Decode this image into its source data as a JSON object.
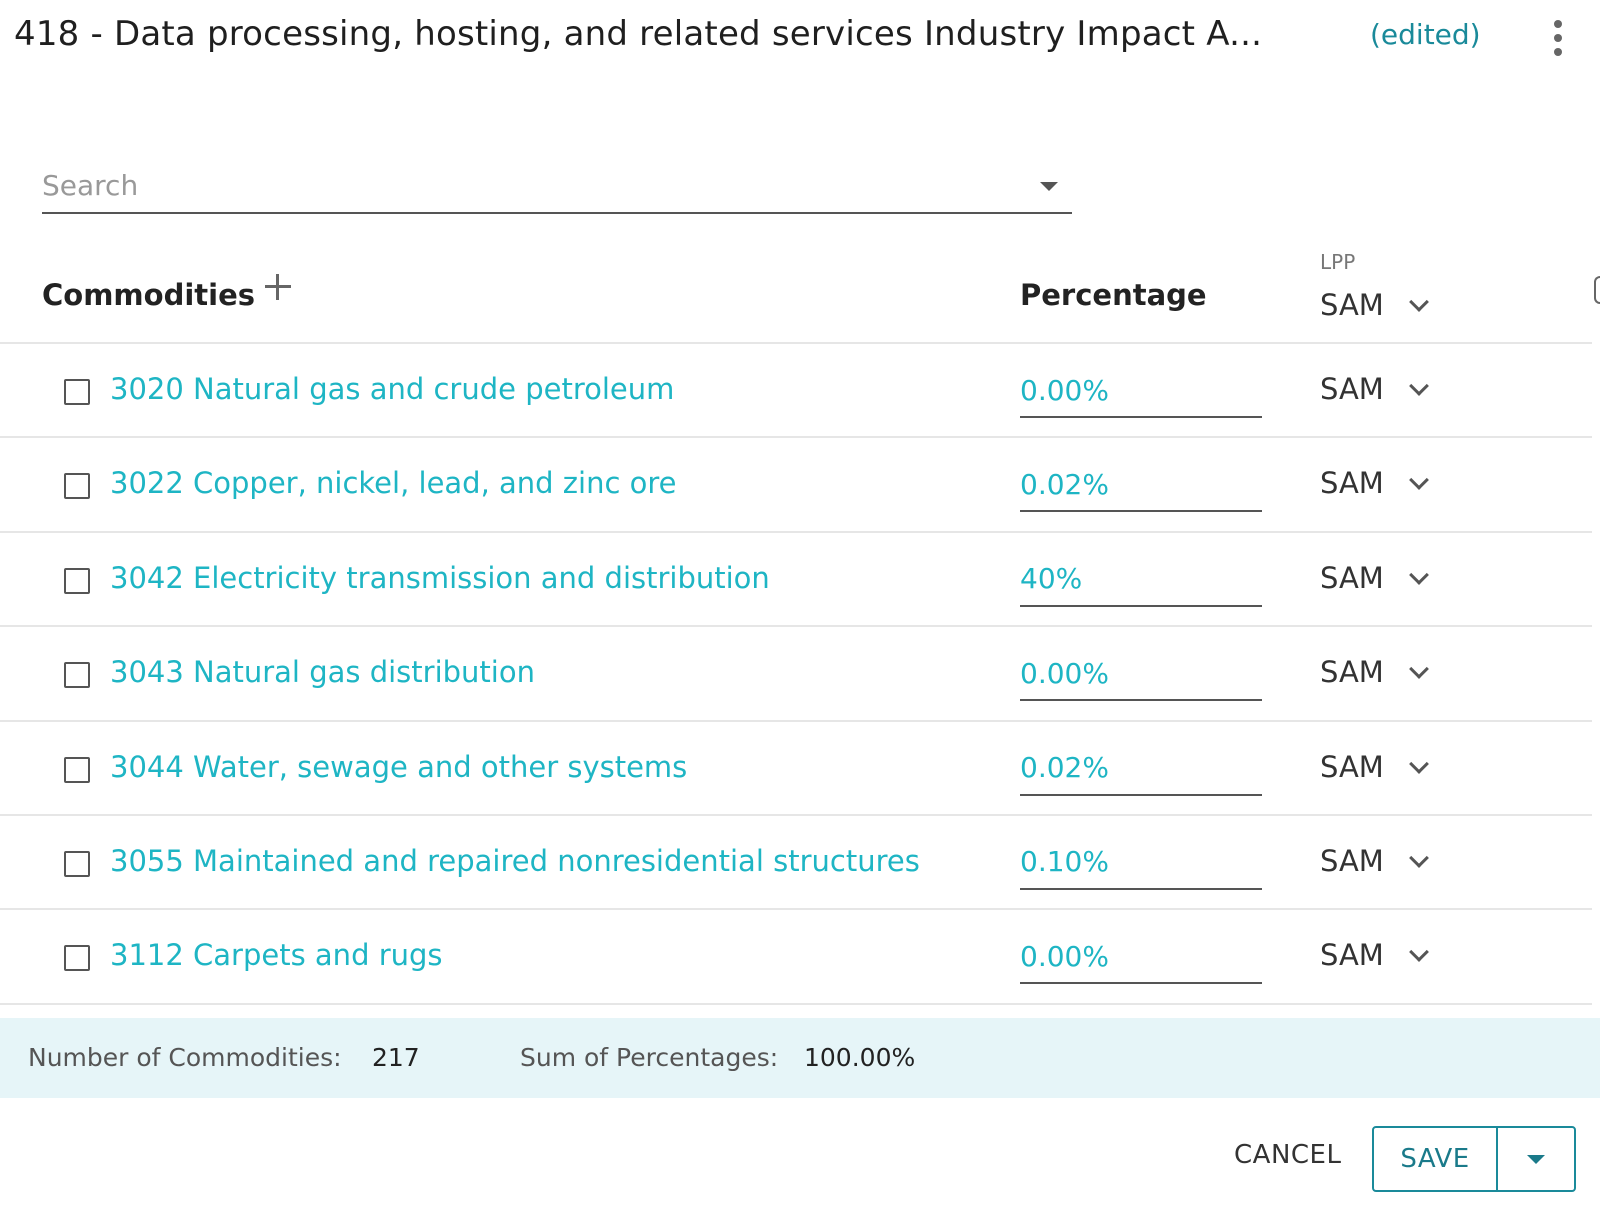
{
  "header": {
    "title": "418 - Data processing, hosting, and related services Industry Impact A...",
    "edited_label": "(edited)",
    "menu_icon": "kebab-menu-icon"
  },
  "search": {
    "placeholder": "Search",
    "value": ""
  },
  "columns": {
    "commodities": "Commodities",
    "percentage": "Percentage",
    "lpp_label": "LPP",
    "lpp_value": "SAM"
  },
  "rows": [
    {
      "name": "3020 Natural gas and crude petroleum",
      "percentage": "0.00%",
      "lpp": "SAM"
    },
    {
      "name": "3022 Copper, nickel, lead, and zinc ore",
      "percentage": "0.02%",
      "lpp": "SAM"
    },
    {
      "name": "3042 Electricity transmission and distribution",
      "percentage": "40%",
      "lpp": "SAM"
    },
    {
      "name": "3043 Natural gas distribution",
      "percentage": "0.00%",
      "lpp": "SAM"
    },
    {
      "name": "3044 Water, sewage and other systems",
      "percentage": "0.02%",
      "lpp": "SAM"
    },
    {
      "name": "3055 Maintained and repaired nonresidential structures",
      "percentage": "0.10%",
      "lpp": "SAM"
    },
    {
      "name": "3112 Carpets and rugs",
      "percentage": "0.00%",
      "lpp": "SAM"
    }
  ],
  "footer": {
    "count_label": "Number of Commodities:",
    "count_value": "217",
    "sum_label": "Sum of Percentages:",
    "sum_value": "100.00%"
  },
  "actions": {
    "cancel": "CANCEL",
    "save": "SAVE"
  },
  "colors": {
    "accent": "#1eb5c4",
    "accent_dark": "#1a8a9a",
    "footer_bg": "#e6f5f8"
  }
}
